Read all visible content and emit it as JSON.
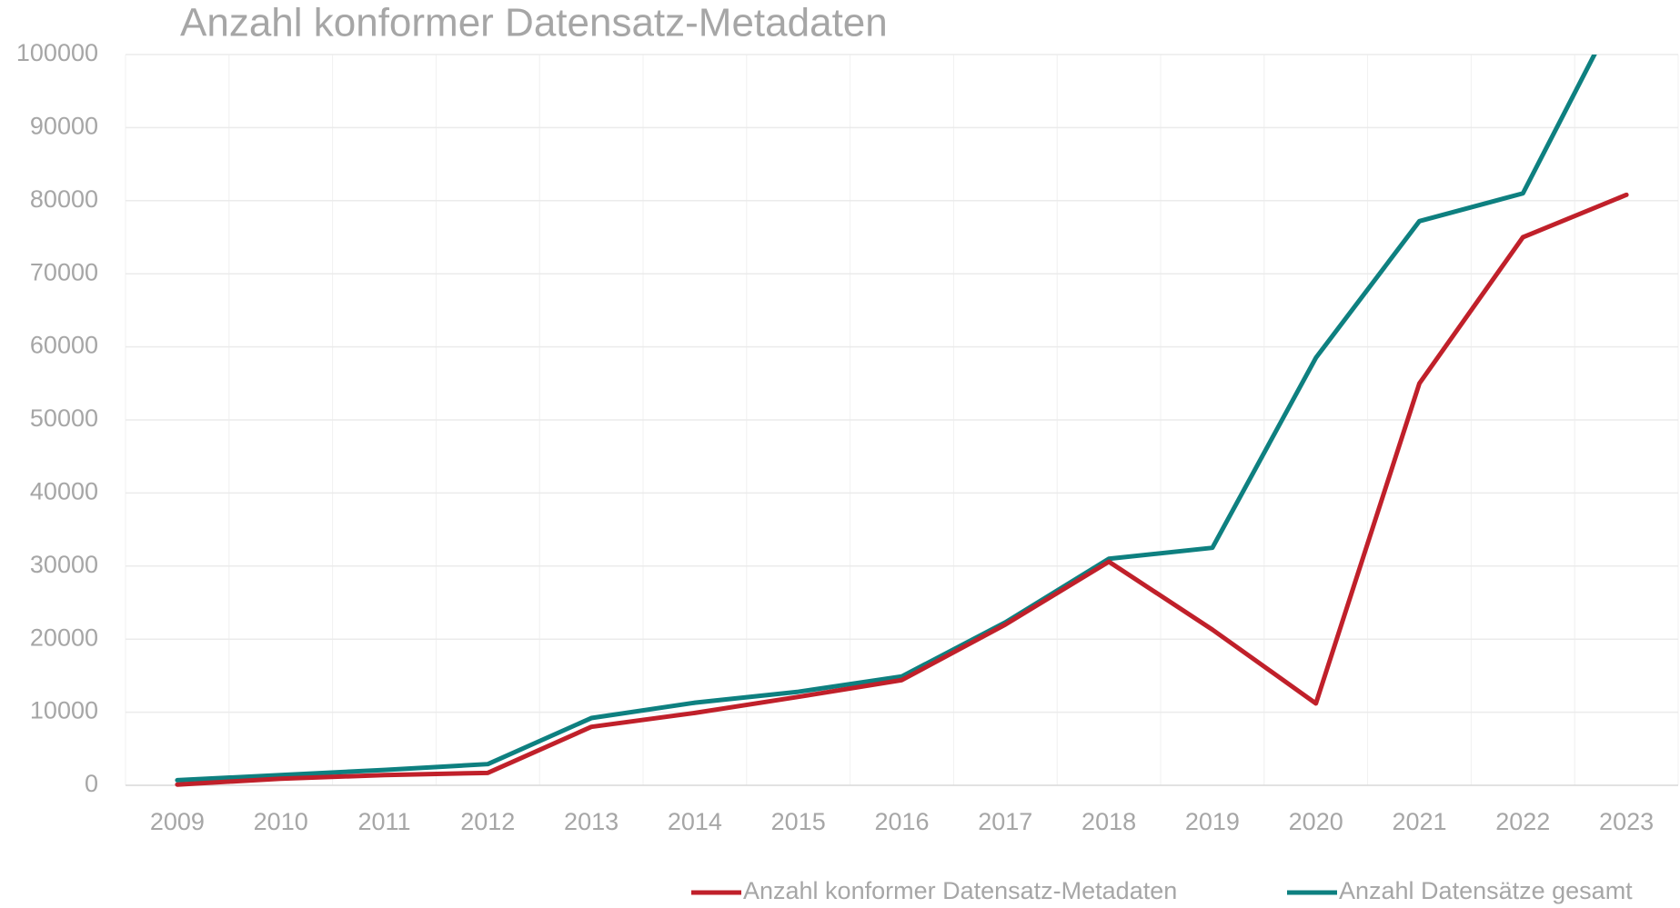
{
  "chart_data": {
    "type": "line",
    "title": "Anzahl konformer Datensatz-Metadaten",
    "categories": [
      "2009",
      "2010",
      "2011",
      "2012",
      "2013",
      "2014",
      "2015",
      "2016",
      "2017",
      "2018",
      "2019",
      "2020",
      "2021",
      "2022",
      "2023"
    ],
    "series": [
      {
        "name": "Anzahl konformer Datensatz-Metadaten",
        "color": "#c0202a",
        "values": [
          100,
          900,
          1400,
          1700,
          8000,
          9900,
          12100,
          14400,
          22000,
          30600,
          21300,
          11200,
          55000,
          75000,
          80800
        ]
      },
      {
        "name": "Anzahl Datensätze gesamt",
        "color": "#0e8080",
        "values": [
          700,
          1400,
          2100,
          2900,
          9200,
          11300,
          12800,
          14900,
          22300,
          31000,
          32500,
          58500,
          77200,
          81000,
          108500
        ]
      }
    ],
    "ylim": [
      0,
      100000
    ],
    "yticks": [
      0,
      10000,
      20000,
      30000,
      40000,
      50000,
      60000,
      70000,
      80000,
      90000,
      100000
    ],
    "grid": true,
    "legend": "bottom-right"
  }
}
